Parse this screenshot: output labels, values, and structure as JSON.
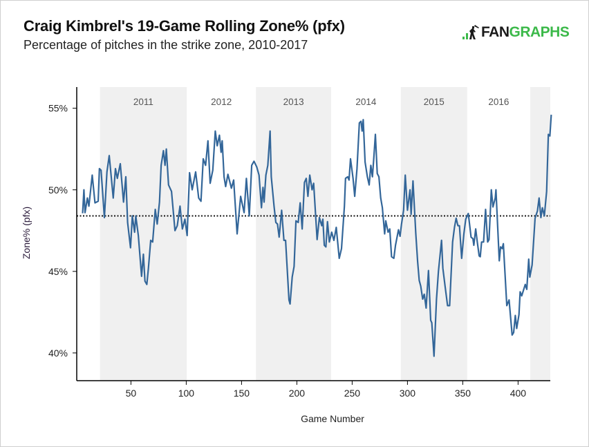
{
  "header": {
    "title": "Craig Kimbrel's 19-Game Rolling Zone% (pfx)",
    "subtitle": "Percentage of pitches in the strike zone, 2010-2017",
    "logo_text": "FANGRAPHS",
    "logo_part1": "FAN",
    "logo_part2": "GRAPHS"
  },
  "chart_data": {
    "type": "line",
    "title": "Craig Kimbrel's 19-Game Rolling Zone% (pfx)",
    "subtitle": "Percentage of pitches in the strike zone, 2010-2017",
    "xlabel": "Game Number",
    "ylabel": "Zone% (pfx)",
    "xlim": [
      1,
      430
    ],
    "ylim": [
      38.3,
      56.3
    ],
    "xticks": [
      50,
      100,
      150,
      200,
      250,
      300,
      350,
      400
    ],
    "yticks": [
      {
        "value": 55,
        "label": "55%"
      },
      {
        "value": 50,
        "label": "50%"
      },
      {
        "value": 45,
        "label": "45%"
      },
      {
        "value": 40,
        "label": "40%"
      }
    ],
    "grid": false,
    "line_color": "#336699",
    "shade_color": "#f0f0f0",
    "reference_line": {
      "value": 48.4,
      "style": "dotted",
      "color": "#111111"
    },
    "seasons": [
      {
        "label": "2011",
        "start": 22,
        "end": 100.5,
        "shaded": true
      },
      {
        "label": "2012",
        "start": 100.5,
        "end": 163,
        "shaded": false
      },
      {
        "label": "2013",
        "start": 163,
        "end": 231,
        "shaded": true
      },
      {
        "label": "2014",
        "start": 231,
        "end": 294,
        "shaded": false
      },
      {
        "label": "2015",
        "start": 294,
        "end": 354,
        "shaded": true
      },
      {
        "label": "2016",
        "start": 354,
        "end": 411,
        "shaded": false
      },
      {
        "label": "",
        "start": 411,
        "end": 430,
        "shaded": true
      }
    ],
    "points": [
      [
        6.3,
        48.56
      ],
      [
        7.5,
        50.0
      ],
      [
        8.5,
        48.6
      ],
      [
        10.6,
        49.5
      ],
      [
        12,
        49.0
      ],
      [
        15,
        50.9
      ],
      [
        17.5,
        49.2
      ],
      [
        20.4,
        49.3
      ],
      [
        21.5,
        51.3
      ],
      [
        23,
        51.2
      ],
      [
        26,
        48.3
      ],
      [
        28.3,
        51.1
      ],
      [
        30.4,
        52.1
      ],
      [
        34,
        49.5
      ],
      [
        36,
        51.3
      ],
      [
        37.7,
        50.7
      ],
      [
        40.4,
        51.6
      ],
      [
        43.3,
        49.25
      ],
      [
        45.4,
        50.8
      ],
      [
        47,
        48.0
      ],
      [
        49.6,
        46.45
      ],
      [
        51.25,
        48.4
      ],
      [
        53.3,
        47.4
      ],
      [
        54.4,
        48.4
      ],
      [
        56.7,
        47.2
      ],
      [
        59.6,
        44.7
      ],
      [
        61.25,
        46.05
      ],
      [
        62.7,
        44.4
      ],
      [
        64.4,
        44.2
      ],
      [
        65.8,
        45.2
      ],
      [
        67.9,
        46.9
      ],
      [
        69.6,
        46.8
      ],
      [
        72,
        48.8
      ],
      [
        73.75,
        47.9
      ],
      [
        75.8,
        49.25
      ],
      [
        77.3,
        51.5
      ],
      [
        79.4,
        52.4
      ],
      [
        80.8,
        51.5
      ],
      [
        82,
        52.5
      ],
      [
        84,
        50.3
      ],
      [
        86.7,
        49.9
      ],
      [
        89.8,
        47.5
      ],
      [
        91.9,
        47.8
      ],
      [
        94.4,
        49.0
      ],
      [
        96.5,
        47.6
      ],
      [
        98.8,
        48.2
      ],
      [
        100.8,
        47.2
      ],
      [
        103,
        51.05
      ],
      [
        105.4,
        50.0
      ],
      [
        108.5,
        51.1
      ],
      [
        111.25,
        49.5
      ],
      [
        113.3,
        49.3
      ],
      [
        115.4,
        51.9
      ],
      [
        117.5,
        51.5
      ],
      [
        119.6,
        53.0
      ],
      [
        121.6,
        50.4
      ],
      [
        124,
        51.2
      ],
      [
        126.25,
        53.6
      ],
      [
        128,
        52.7
      ],
      [
        130,
        53.35
      ],
      [
        131.5,
        52.3
      ],
      [
        132.5,
        53.0
      ],
      [
        134.2,
        50.8
      ],
      [
        135.6,
        50.2
      ],
      [
        137.7,
        50.95
      ],
      [
        140.8,
        50.1
      ],
      [
        142.9,
        50.6
      ],
      [
        146,
        47.3
      ],
      [
        149.2,
        49.6
      ],
      [
        152.3,
        48.6
      ],
      [
        154.4,
        50.7
      ],
      [
        157,
        48.4
      ],
      [
        159.2,
        51.5
      ],
      [
        161.25,
        51.75
      ],
      [
        163.75,
        51.4
      ],
      [
        165.8,
        50.9
      ],
      [
        168,
        48.9
      ],
      [
        169.4,
        50.15
      ],
      [
        170.4,
        49.25
      ],
      [
        172,
        50.9
      ],
      [
        173.75,
        51.5
      ],
      [
        175.8,
        53.6
      ],
      [
        176.9,
        50.8
      ],
      [
        179.4,
        49.0
      ],
      [
        181,
        48.0
      ],
      [
        182.5,
        47.9
      ],
      [
        184,
        47.1
      ],
      [
        186.25,
        48.75
      ],
      [
        188.3,
        46.9
      ],
      [
        189.8,
        46.9
      ],
      [
        192.9,
        43.25
      ],
      [
        193.9,
        43.0
      ],
      [
        195.8,
        44.66
      ],
      [
        197.5,
        45.3
      ],
      [
        199.2,
        48.1
      ],
      [
        201.25,
        48.0
      ],
      [
        203,
        49.2
      ],
      [
        204.8,
        47.6
      ],
      [
        206.9,
        50.45
      ],
      [
        208.5,
        50.7
      ],
      [
        210,
        49.6
      ],
      [
        211.7,
        50.9
      ],
      [
        213.75,
        50.0
      ],
      [
        215.2,
        50.4
      ],
      [
        218.3,
        46.95
      ],
      [
        220.4,
        48.3
      ],
      [
        222.5,
        47.8
      ],
      [
        223.5,
        48.2
      ],
      [
        224.8,
        46.6
      ],
      [
        226.25,
        46.5
      ],
      [
        227.7,
        48.05
      ],
      [
        229.4,
        46.8
      ],
      [
        231.5,
        47.4
      ],
      [
        233.5,
        46.9
      ],
      [
        235.6,
        47.7
      ],
      [
        238.3,
        45.8
      ],
      [
        240.4,
        46.4
      ],
      [
        243,
        49.0
      ],
      [
        244,
        50.7
      ],
      [
        246,
        50.8
      ],
      [
        247.2,
        50.6
      ],
      [
        248.5,
        51.9
      ],
      [
        250.8,
        50.7
      ],
      [
        252.3,
        49.6
      ],
      [
        254.4,
        51.3
      ],
      [
        256.5,
        54.1
      ],
      [
        258,
        54.2
      ],
      [
        259,
        53.6
      ],
      [
        260,
        54.3
      ],
      [
        261.7,
        51.7
      ],
      [
        263.75,
        50.8
      ],
      [
        265.4,
        50.3
      ],
      [
        266.9,
        51.5
      ],
      [
        268.3,
        50.8
      ],
      [
        269.6,
        52.0
      ],
      [
        271,
        53.4
      ],
      [
        272.7,
        51.0
      ],
      [
        274.2,
        50.8
      ],
      [
        275.8,
        49.5
      ],
      [
        277.3,
        48.9
      ],
      [
        279.4,
        47.3
      ],
      [
        280.4,
        48.1
      ],
      [
        282.5,
        47.4
      ],
      [
        284,
        47.6
      ],
      [
        285.6,
        45.9
      ],
      [
        287.7,
        45.8
      ],
      [
        289.2,
        46.6
      ],
      [
        291.9,
        47.55
      ],
      [
        293.3,
        47.15
      ],
      [
        294.6,
        47.9
      ],
      [
        296.5,
        48.75
      ],
      [
        298,
        50.9
      ],
      [
        300,
        48.75
      ],
      [
        302.3,
        50.0
      ],
      [
        303.3,
        48.5
      ],
      [
        305,
        50.55
      ],
      [
        307.5,
        47.35
      ],
      [
        309.2,
        45.6
      ],
      [
        310.6,
        44.45
      ],
      [
        312,
        44.1
      ],
      [
        313.75,
        43.3
      ],
      [
        315.2,
        43.6
      ],
      [
        316.9,
        42.75
      ],
      [
        319,
        45.05
      ],
      [
        321,
        42.0
      ],
      [
        322,
        41.85
      ],
      [
        324,
        39.8
      ],
      [
        326.25,
        43.3
      ],
      [
        328,
        45.0
      ],
      [
        330.8,
        46.9
      ],
      [
        332,
        45.2
      ],
      [
        334,
        44.1
      ],
      [
        336.25,
        42.9
      ],
      [
        338.1,
        42.9
      ],
      [
        340.8,
        46.8
      ],
      [
        342.5,
        47.7
      ],
      [
        344,
        48.26
      ],
      [
        345.6,
        47.8
      ],
      [
        347,
        47.8
      ],
      [
        349,
        45.8
      ],
      [
        351,
        47.3
      ],
      [
        352.7,
        48.2
      ],
      [
        355,
        48.55
      ],
      [
        357.5,
        47.1
      ],
      [
        359.2,
        47.0
      ],
      [
        360,
        46.6
      ],
      [
        361.7,
        47.6
      ],
      [
        363.1,
        46.8
      ],
      [
        364.8,
        45.95
      ],
      [
        365.8,
        45.9
      ],
      [
        367,
        46.8
      ],
      [
        368.8,
        46.8
      ],
      [
        370.6,
        48.8
      ],
      [
        372.5,
        46.8
      ],
      [
        373.75,
        46.95
      ],
      [
        375.8,
        50.0
      ],
      [
        377.3,
        48.95
      ],
      [
        379.4,
        49.5
      ],
      [
        380,
        50.0
      ],
      [
        383,
        45.65
      ],
      [
        384.2,
        46.5
      ],
      [
        385.6,
        46.4
      ],
      [
        386.7,
        46.7
      ],
      [
        389.8,
        42.9
      ],
      [
        391.9,
        43.25
      ],
      [
        394.6,
        41.1
      ],
      [
        396,
        41.25
      ],
      [
        397.5,
        42.3
      ],
      [
        398.75,
        41.5
      ],
      [
        400.8,
        42.35
      ],
      [
        401.9,
        43.75
      ],
      [
        403.3,
        43.5
      ],
      [
        406.5,
        44.2
      ],
      [
        407.9,
        43.9
      ],
      [
        409.6,
        45.75
      ],
      [
        410.6,
        44.65
      ],
      [
        412.7,
        45.4
      ],
      [
        415.4,
        48.26
      ],
      [
        417.5,
        48.7
      ],
      [
        419,
        49.5
      ],
      [
        420.6,
        48.3
      ],
      [
        422,
        48.9
      ],
      [
        423.75,
        48.4
      ],
      [
        425.8,
        49.9
      ],
      [
        427.4,
        53.4
      ],
      [
        428.75,
        53.3
      ],
      [
        430,
        54.6
      ]
    ]
  }
}
